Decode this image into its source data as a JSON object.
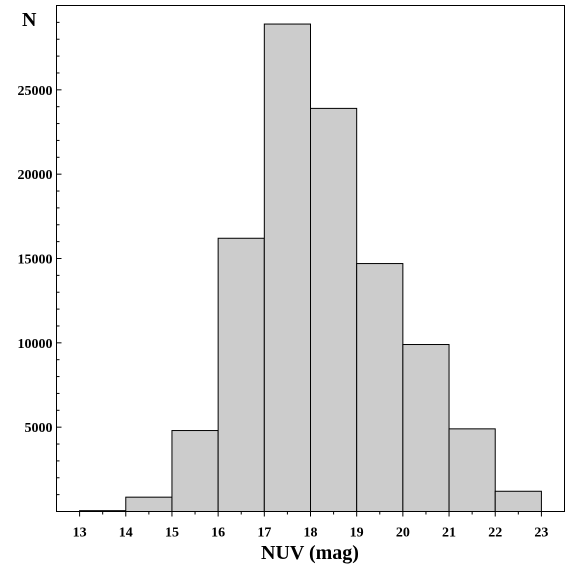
{
  "chart_data": {
    "type": "bar",
    "subtype": "histogram",
    "title": "",
    "xlabel": "NUV (mag)",
    "ylabel": "N",
    "bin_edges": [
      13,
      14,
      15,
      16,
      17,
      18,
      19,
      20,
      21,
      22,
      23
    ],
    "values": [
      50,
      850,
      4800,
      16200,
      28900,
      23900,
      14700,
      9900,
      4900,
      1200
    ],
    "xticks": [
      "13",
      "14",
      "15",
      "16",
      "17",
      "18",
      "19",
      "20",
      "21",
      "22",
      "23"
    ],
    "yticks": [
      "5000",
      "10000",
      "15000",
      "20000",
      "25000"
    ],
    "xlim": [
      12.5,
      23.5
    ],
    "ylim": [
      0,
      30000
    ],
    "grid": false,
    "bar_color": "#cccccc",
    "edge_color": "#000000"
  }
}
